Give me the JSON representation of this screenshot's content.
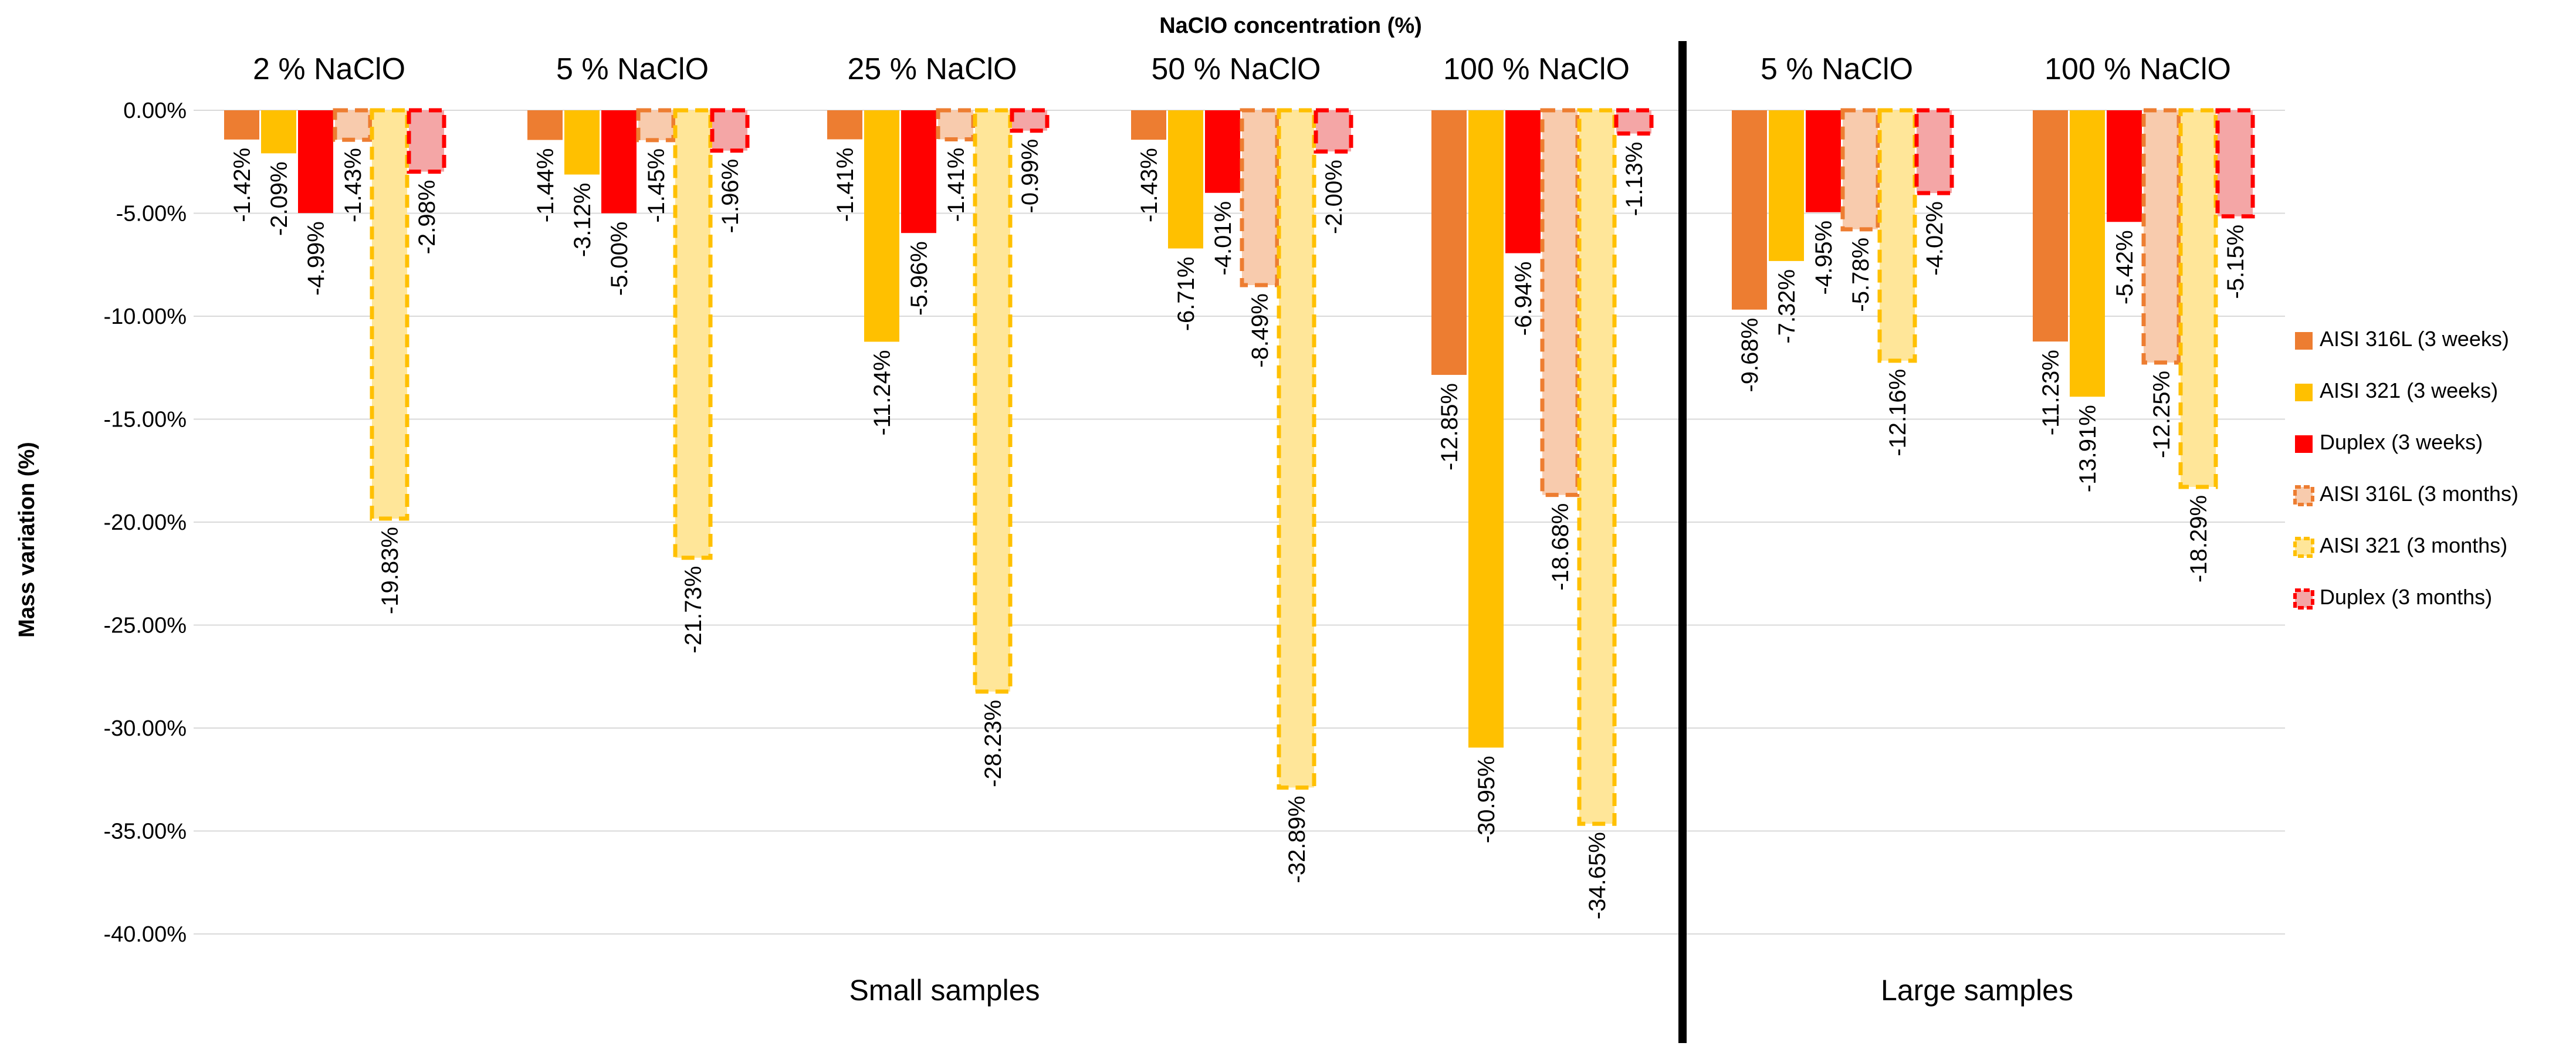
{
  "chart_data": {
    "type": "bar",
    "title": "NaClO concentration (%)",
    "ylabel": "Mass variation (%)",
    "ylim": [
      -40,
      0
    ],
    "yticks": [
      0,
      -5,
      -10,
      -15,
      -20,
      -25,
      -30,
      -35,
      -40
    ],
    "ytick_labels": [
      "0.00%",
      "-5.00%",
      "-10.00%",
      "-15.00%",
      "-20.00%",
      "-25.00%",
      "-30.00%",
      "-35.00%",
      "-40.00%"
    ],
    "grid": true,
    "legend_position": "right",
    "sections": [
      {
        "label": "Small samples",
        "groups": [
          "2 % NaClO",
          "5 % NaClO",
          "25 % NaClO",
          "50 % NaClO",
          "100 % NaClO"
        ]
      },
      {
        "label": "Large samples",
        "groups": [
          "5 % NaClO",
          "100 % NaClO"
        ]
      }
    ],
    "categories": [
      "2 % NaClO",
      "5 % NaClO",
      "25 % NaClO",
      "50 % NaClO",
      "100 % NaClO",
      "5 % NaClO",
      "100 % NaClO"
    ],
    "series": [
      {
        "name": "AISI 316L (3 weeks)",
        "color": "#ED7D31",
        "style": "solid",
        "values": [
          -1.42,
          -1.44,
          -1.41,
          -1.43,
          -12.85,
          -9.68,
          -11.23
        ],
        "labels": [
          "-1.42%",
          "-1.44%",
          "-1.41%",
          "-1.43%",
          "-12.85%",
          "-9.68%",
          "-11.23%"
        ]
      },
      {
        "name": "AISI 321 (3 weeks)",
        "color": "#FFC000",
        "style": "solid",
        "values": [
          -2.09,
          -3.12,
          -11.24,
          -6.71,
          -30.95,
          -7.32,
          -13.91
        ],
        "labels": [
          "-2.09%",
          "-3.12%",
          "-11.24%",
          "-6.71%",
          "-30.95%",
          "-7.32%",
          "-13.91%"
        ]
      },
      {
        "name": "Duplex (3 weeks)",
        "color": "#FF0000",
        "style": "solid",
        "values": [
          -4.99,
          -5.0,
          -5.96,
          -4.01,
          -6.94,
          -4.95,
          -5.42
        ],
        "labels": [
          "-4.99%",
          "-5.00%",
          "-5.96%",
          "-4.01%",
          "-6.94%",
          "-4.95%",
          "-5.42%"
        ]
      },
      {
        "name": "AISI 316L (3 months)",
        "color": "#ED7D31",
        "fill": "#F8CBAD",
        "style": "dashed",
        "values": [
          -1.43,
          -1.45,
          -1.41,
          -8.49,
          -18.68,
          -5.78,
          -12.25
        ],
        "labels": [
          "-1.43%",
          "-1.45%",
          "-1.41%",
          "-8.49%",
          "-18.68%",
          "-5.78%",
          "-12.25%"
        ]
      },
      {
        "name": "AISI 321 (3 months)",
        "color": "#FFC000",
        "fill": "#FFE699",
        "style": "dashed",
        "values": [
          -19.83,
          -21.73,
          -28.23,
          -32.89,
          -34.65,
          -12.16,
          -18.29
        ],
        "labels": [
          "-19.83%",
          "-21.73%",
          "-28.23%",
          "-32.89%",
          "-34.65%",
          "-12.16%",
          "-18.29%"
        ]
      },
      {
        "name": "Duplex (3 months)",
        "color": "#FF0000",
        "fill": "#F4A6A6",
        "style": "dashed",
        "values": [
          -2.98,
          -1.96,
          -0.99,
          -2.0,
          -1.13,
          -4.02,
          -5.15
        ],
        "labels": [
          "-2.98%",
          "-1.96%",
          "-0.99%",
          "-2.00%",
          "-1.13%",
          "-4.02%",
          "-5.15%"
        ]
      }
    ]
  }
}
